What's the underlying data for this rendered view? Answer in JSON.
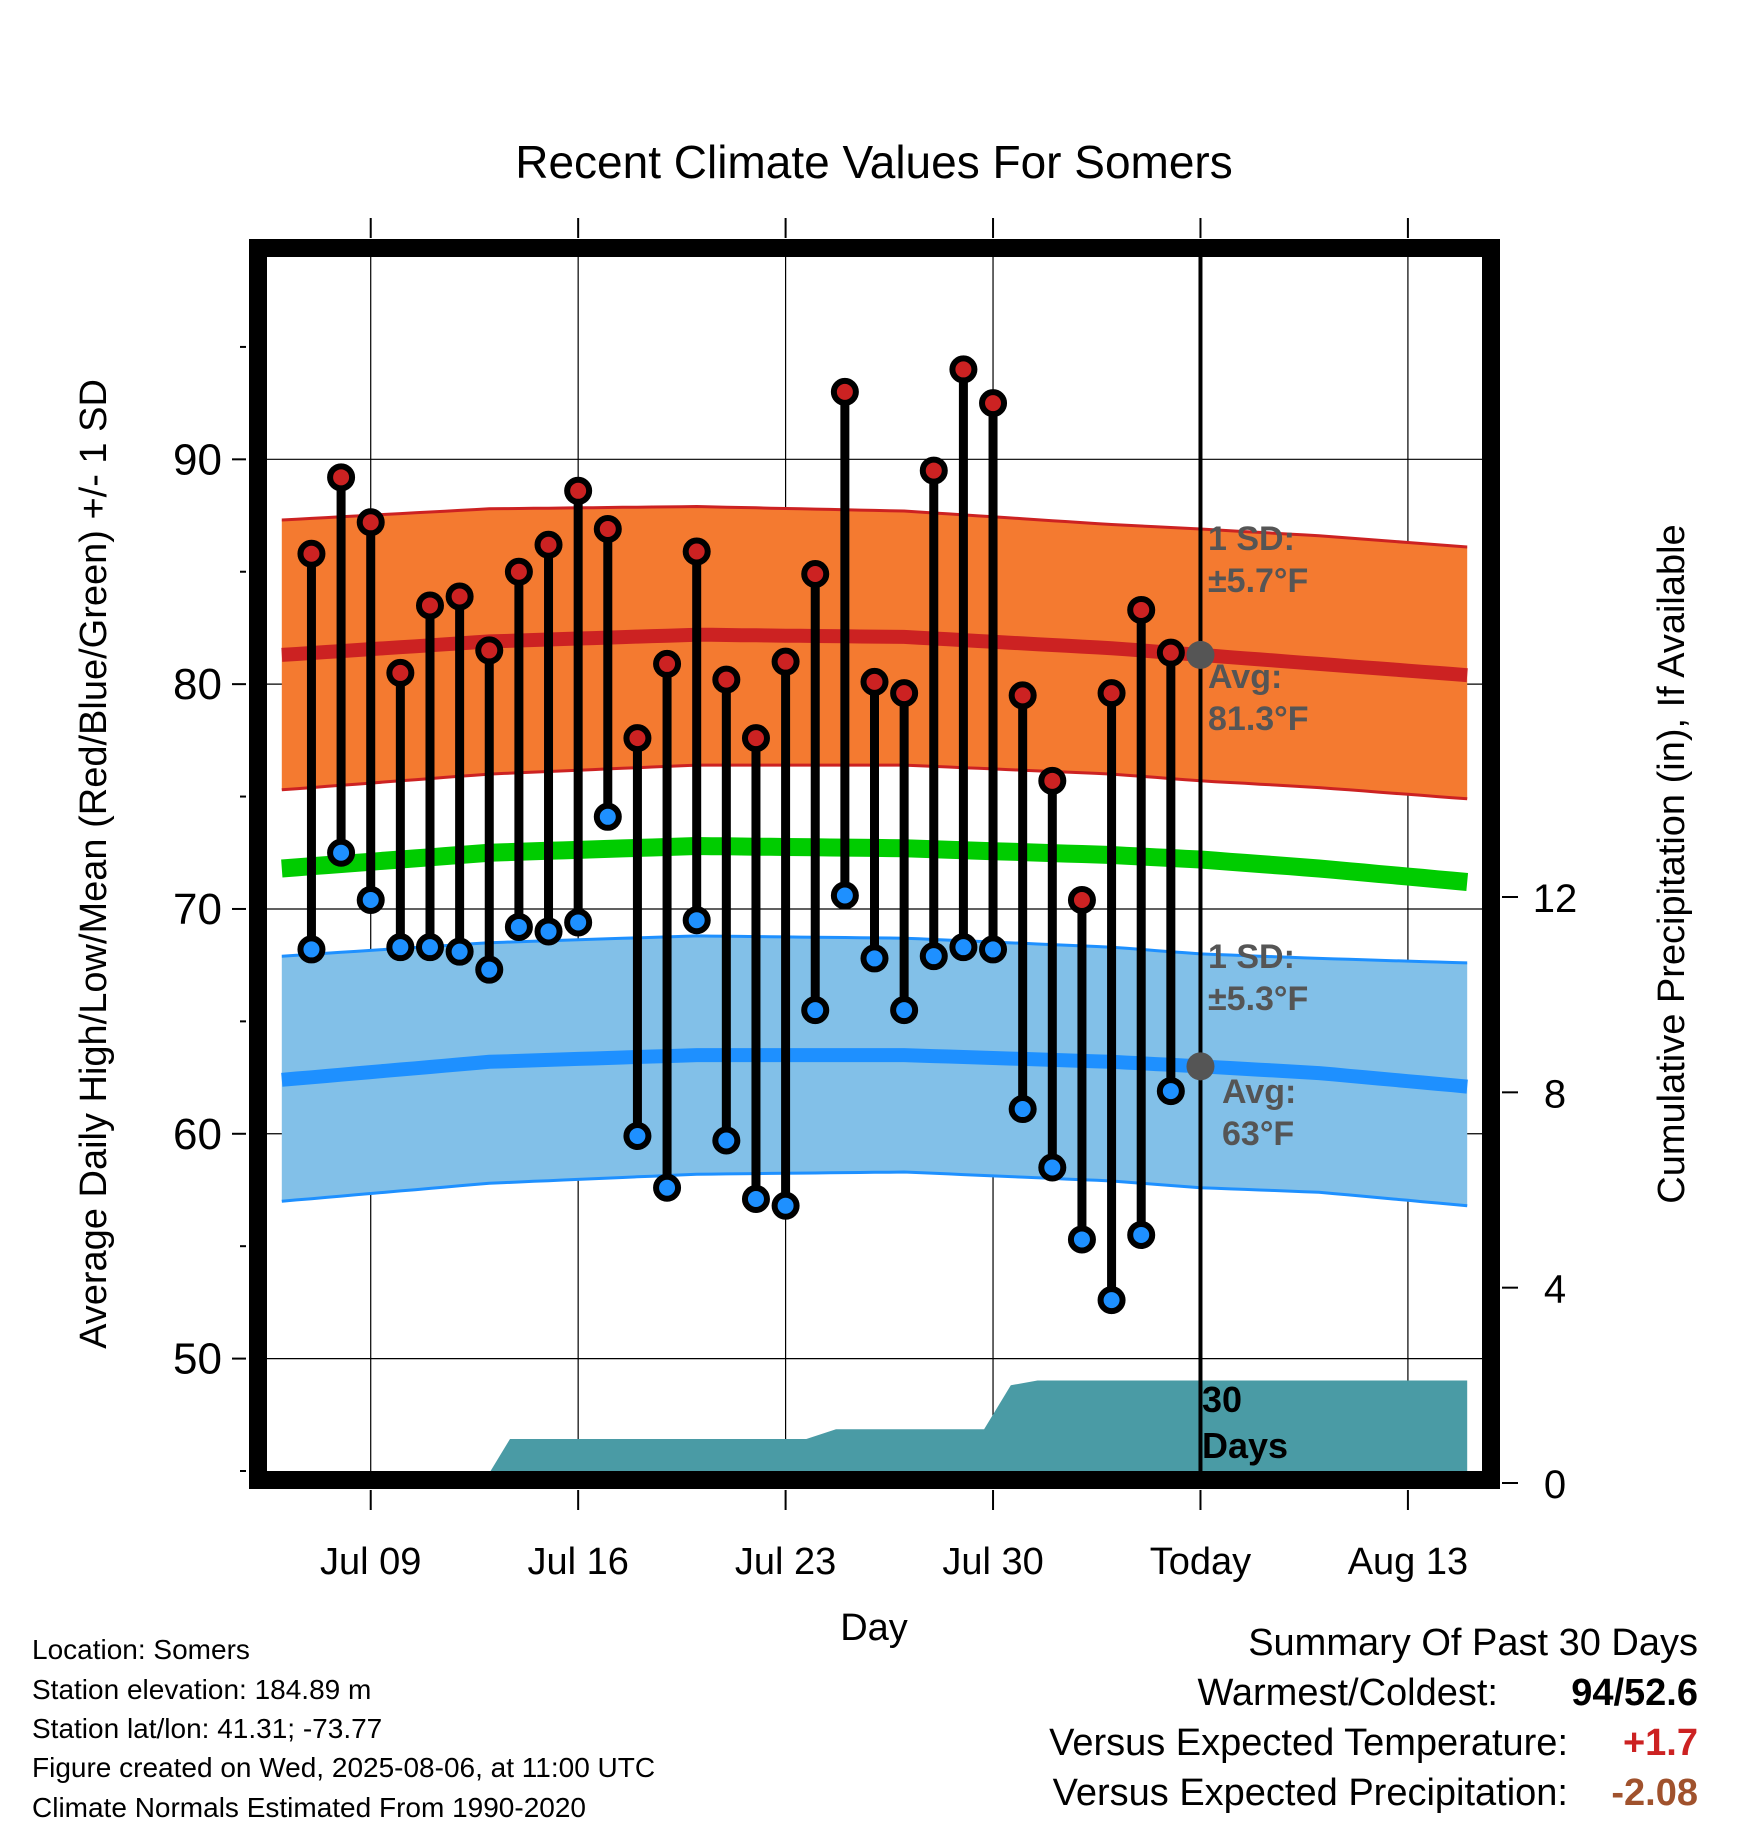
{
  "chart_data": {
    "type": "line",
    "title": "Recent Climate Values For Somers",
    "xlabel": "Day",
    "ylabel": "Average Daily High/Low/Mean (Red/Blue/Green) +/- 1 SD",
    "y2label": "Cumulative Precipitation (in), If Available",
    "x_tick_labels": [
      "Jul 09",
      "Jul 16",
      "Jul 23",
      "Jul 30",
      "Today",
      "Aug 13"
    ],
    "x_tick_offsets_days": [
      -28,
      -21,
      -14,
      -7,
      0,
      7
    ],
    "x_range_days": [
      -31.5,
      9.5
    ],
    "ylim": [
      45,
      99
    ],
    "y_ticks": [
      50,
      60,
      70,
      80,
      90
    ],
    "y2lim": [
      0,
      12
    ],
    "y2_ticks": [
      0,
      4,
      8,
      12
    ],
    "grid": true,
    "daily_high": [
      85.8,
      89.2,
      87.2,
      80.5,
      83.5,
      83.9,
      81.5,
      85.0,
      86.2,
      88.6,
      86.9,
      77.6,
      80.9,
      85.9,
      80.2,
      77.6,
      81.0,
      84.9,
      93.0,
      80.1,
      79.6,
      89.5,
      94.0,
      92.5,
      79.5,
      75.7,
      70.4,
      79.6,
      83.3,
      81.4
    ],
    "daily_low": [
      68.2,
      72.5,
      70.4,
      68.3,
      68.3,
      68.1,
      67.3,
      69.2,
      69.0,
      69.4,
      74.1,
      59.9,
      57.6,
      69.5,
      59.7,
      57.1,
      56.8,
      65.5,
      70.6,
      67.8,
      65.5,
      67.9,
      68.3,
      68.2,
      61.1,
      58.5,
      55.3,
      52.6,
      55.5,
      61.9
    ],
    "normal_high": {
      "x_days": [
        -31,
        -24,
        -17,
        -10,
        -3,
        0,
        4,
        9
      ],
      "avg": [
        81.3,
        81.9,
        82.2,
        82.1,
        81.6,
        81.3,
        80.9,
        80.4
      ],
      "upper": [
        87.3,
        87.8,
        87.9,
        87.7,
        87.1,
        86.9,
        86.6,
        86.1
      ],
      "lower": [
        75.3,
        76.0,
        76.4,
        76.4,
        76.0,
        75.7,
        75.4,
        74.9
      ]
    },
    "normal_mean": {
      "x_days": [
        -31,
        -24,
        -17,
        -10,
        -3,
        0,
        4,
        9
      ],
      "values": [
        71.8,
        72.5,
        72.8,
        72.7,
        72.4,
        72.2,
        71.8,
        71.2
      ]
    },
    "normal_low": {
      "x_days": [
        -31,
        -24,
        -17,
        -10,
        -3,
        0,
        4,
        9
      ],
      "avg": [
        62.4,
        63.2,
        63.5,
        63.5,
        63.2,
        63.0,
        62.7,
        62.1
      ],
      "upper": [
        67.9,
        68.5,
        68.8,
        68.7,
        68.3,
        68.0,
        67.8,
        67.6
      ],
      "lower": [
        57.0,
        57.8,
        58.2,
        58.3,
        57.9,
        57.6,
        57.4,
        56.8
      ]
    },
    "cumulative_precip": {
      "x_days": [
        -31,
        -24.2,
        -23.3,
        -14.3,
        -13.3,
        -12.3,
        -11.3,
        -7.3,
        -6.4,
        -5.5,
        9
      ],
      "values": [
        0,
        0,
        0.9,
        0.9,
        0.9,
        1.1,
        1.1,
        1.1,
        2.0,
        2.1,
        2.1
      ]
    },
    "high_color": "#cc2222",
    "low_color": "#1e90ff",
    "mean_color": "#00cc00",
    "high_band_color": "#f47a30",
    "low_band_color": "#82c0e8",
    "precip_color": "#4a9ba5",
    "annotations": {
      "high_sd": [
        "1 SD:",
        "±5.7°F"
      ],
      "high_avg": [
        "Avg:",
        "81.3°F"
      ],
      "low_sd": [
        "1 SD:",
        "±5.3°F"
      ],
      "low_avg": [
        "Avg:",
        "63°F"
      ],
      "precip_days": [
        "30",
        "Days"
      ],
      "high_avg_value": 81.3,
      "low_avg_value": 63.0
    }
  },
  "footer": {
    "location": "Location: Somers",
    "elevation": "Station elevation: 184.89 m",
    "latlon": "Station lat/lon: 41.31; -73.77",
    "created": "Figure created on Wed, 2025-08-06, at 11:00 UTC",
    "normals": "Climate Normals Estimated From 1990-2020"
  },
  "summary": {
    "title": "Summary Of Past 30 Days",
    "warmest_coldest_label": "Warmest/Coldest:",
    "warmest": "94",
    "slash": "/",
    "coldest": "52.6",
    "temp_label": "Versus Expected Temperature:",
    "temp_value": "+1.7",
    "temp_color": "#cc2222",
    "precip_label": "Versus Expected Precipitation:",
    "precip_value": "-2.08",
    "precip_color": "#a0522d"
  }
}
